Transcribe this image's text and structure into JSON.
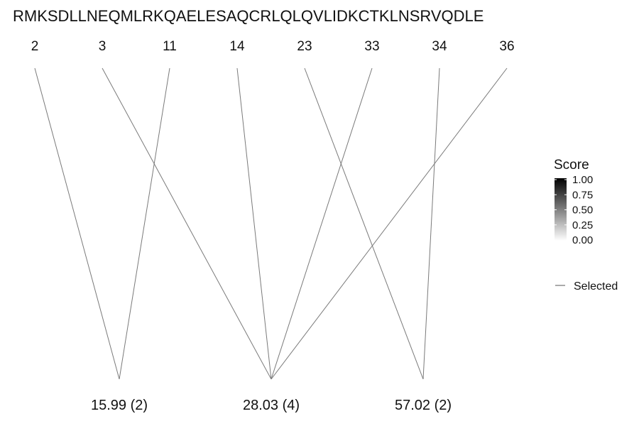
{
  "chart_data": {
    "type": "diagram",
    "sequence": "RMKSDLLNEQMLRKQAELESAQCRLQLQVLIDKCTKLNSRVQDLE",
    "positions": [
      2,
      3,
      11,
      14,
      23,
      33,
      34,
      36
    ],
    "masses": [
      {
        "label": "15.99 (2)",
        "positions": [
          2,
          11
        ]
      },
      {
        "label": "28.03 (4)",
        "positions": [
          3,
          14,
          33,
          36
        ]
      },
      {
        "label": "57.02 (2)",
        "positions": [
          23,
          34
        ]
      }
    ],
    "legend": {
      "title": "Score",
      "ticks": [
        "1.00",
        "0.75",
        "0.50",
        "0.25",
        "0.00"
      ],
      "colors": {
        "high": "#000000",
        "low": "#ffffff"
      },
      "line_label": "Selected",
      "line_color": "#7a7a7a"
    }
  }
}
